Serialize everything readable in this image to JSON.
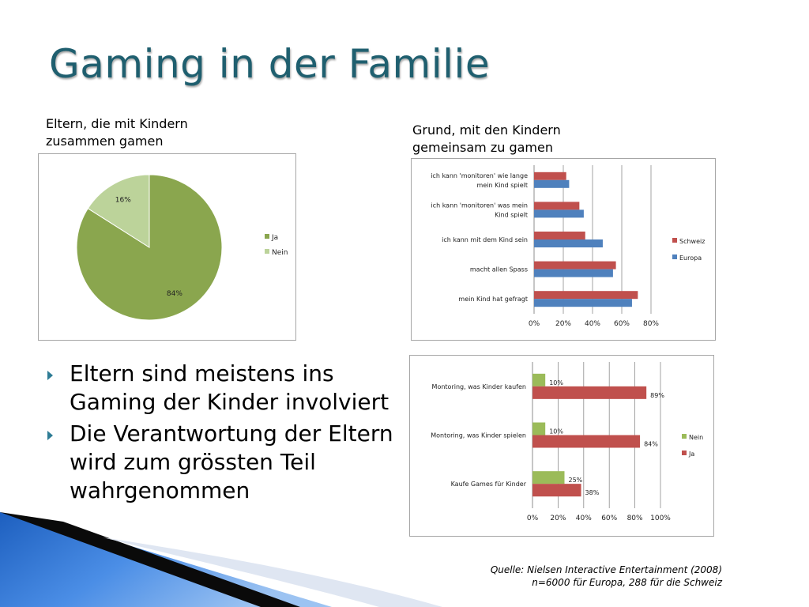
{
  "slide": {
    "title": "Gaming in der Familie",
    "pie_caption": [
      "Eltern, die mit Kindern",
      "zusammen gamen"
    ],
    "bar_caption": [
      "Grund, mit den Kindern",
      "gemeinsam zu gamen"
    ],
    "bullets": [
      "Eltern sind meistens ins Gaming der Kinder involviert",
      "Die Verantwortung der Eltern wird zum grössten Teil wahrgenommen"
    ],
    "source": [
      "Quelle: Nielsen  Interactive Entertainment (2008)",
      "n=6000 für Europa, 288 für  die Schweiz"
    ],
    "bullet_color": "#2e7c95",
    "title_color": "#1f5f6f"
  },
  "chart_data": [
    {
      "type": "pie",
      "categories": [
        "Ja",
        "Nein"
      ],
      "values": [
        84,
        16
      ],
      "data_labels": [
        "84%",
        "16%"
      ],
      "colors": [
        "#8aa64e",
        "#bcd39a"
      ],
      "legend": "right"
    },
    {
      "type": "bar",
      "orientation": "horizontal",
      "categories": [
        "ich kann 'monitoren' wie lange mein Kind spielt",
        "ich kann 'monitoren' was mein Kind spielt",
        "ich kann mit dem Kind sein",
        "macht allen Spass",
        "mein Kind hat gefragt"
      ],
      "category_lines": [
        [
          "ich kann 'monitoren' wie lange",
          "mein Kind spielt"
        ],
        [
          "ich kann 'monitoren' was mein",
          "Kind spielt"
        ],
        [
          "ich kann mit dem Kind sein"
        ],
        [
          "macht allen Spass"
        ],
        [
          "mein Kind hat gefragt"
        ]
      ],
      "series": [
        {
          "name": "Schweiz",
          "values": [
            22,
            31,
            35,
            56,
            71
          ],
          "color": "#c0504d"
        },
        {
          "name": "Europa",
          "values": [
            24,
            34,
            47,
            54,
            67
          ],
          "color": "#4f81bd"
        }
      ],
      "xlim": [
        0,
        80
      ],
      "xticks": [
        "0%",
        "20%",
        "40%",
        "60%",
        "80%"
      ],
      "grid": true,
      "legend": "right"
    },
    {
      "type": "bar",
      "orientation": "horizontal",
      "categories": [
        "Montoring, was Kinder kaufen",
        "Montoring, was Kinder spielen",
        "Kaufe Games für Kinder"
      ],
      "category_lines": [
        [
          "Montoring, was Kinder kaufen"
        ],
        [
          "Montoring, was Kinder spielen"
        ],
        [
          "Kaufe Games für Kinder"
        ]
      ],
      "series": [
        {
          "name": "Nein",
          "values": [
            10,
            10,
            25
          ],
          "labels": [
            "10%",
            "10%",
            "25%"
          ],
          "color": "#9bbb59"
        },
        {
          "name": "Ja",
          "values": [
            89,
            84,
            38
          ],
          "labels": [
            "89%",
            "84%",
            "38%"
          ],
          "color": "#c0504d"
        }
      ],
      "xlim": [
        0,
        100
      ],
      "xticks": [
        "0%",
        "20%",
        "40%",
        "60%",
        "80%",
        "100%"
      ],
      "grid": true,
      "legend": "right"
    }
  ]
}
